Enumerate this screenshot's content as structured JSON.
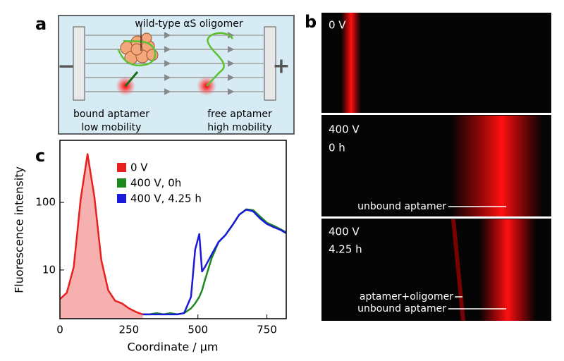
{
  "panel_a": {
    "label": "a",
    "oligomer_label": "wild-type αS oligomer",
    "minus": "−",
    "plus": "+",
    "left_caption": [
      "bound aptamer",
      "low mobility"
    ],
    "right_caption": [
      "free aptamer",
      "high mobility"
    ]
  },
  "panel_b": {
    "label": "b",
    "images": [
      {
        "labels": [
          "0 V"
        ],
        "annotations": []
      },
      {
        "labels": [
          "400 V",
          "0 h"
        ],
        "annotations": [
          "unbound aptamer"
        ]
      },
      {
        "labels": [
          "400 V",
          "4.25 h"
        ],
        "annotations": [
          "aptamer+oligomer",
          "unbound aptamer"
        ]
      }
    ]
  },
  "chart_data": {
    "type": "line",
    "panel_label": "c",
    "xlabel": "Coordinate / µm",
    "ylabel": "Fluorescence intensity",
    "xlim": [
      0,
      820
    ],
    "ylim": [
      1.9,
      830
    ],
    "log_y": true,
    "xticks": [
      0,
      250,
      500,
      750
    ],
    "yticks": [
      10,
      100
    ],
    "x": [
      0,
      25,
      50,
      75,
      100,
      125,
      150,
      175,
      200,
      225,
      250,
      275,
      300,
      325,
      350,
      375,
      400,
      425,
      450,
      475,
      490,
      505,
      515,
      525,
      550,
      575,
      600,
      625,
      650,
      675,
      700,
      725,
      750,
      775,
      800,
      820
    ],
    "series": [
      {
        "name": "0 V",
        "color": "#e8201e",
        "fill": "#f6b0b0",
        "values": [
          3.7,
          4.6,
          11,
          110,
          520,
          120,
          14,
          5,
          3.5,
          3.2,
          2.7,
          2.4,
          2.2,
          null,
          null,
          null,
          null,
          null,
          null,
          null,
          null,
          null,
          null,
          null,
          null,
          null,
          null,
          null,
          null,
          null,
          null,
          null,
          null,
          null,
          null,
          null
        ]
      },
      {
        "name": "400 V, 0h",
        "color": "#1e8a1e",
        "values": [
          null,
          null,
          null,
          null,
          null,
          null,
          null,
          null,
          null,
          null,
          null,
          null,
          2.2,
          2.2,
          2.3,
          2.2,
          2.3,
          2.2,
          2.3,
          2.7,
          3.2,
          4,
          5,
          7,
          15,
          26,
          33,
          46,
          66,
          79,
          77,
          62,
          50,
          45,
          40,
          36
        ]
      },
      {
        "name": "400 V, 4.25 h",
        "color": "#1a1ad8",
        "values": [
          null,
          null,
          null,
          null,
          null,
          null,
          null,
          null,
          null,
          null,
          null,
          null,
          2.2,
          2.2,
          2.2,
          2.2,
          2.2,
          2.2,
          2.3,
          4,
          20,
          34,
          9.5,
          11,
          17,
          26,
          33,
          46,
          66,
          78,
          74,
          58,
          48,
          43,
          39,
          35
        ]
      }
    ]
  }
}
